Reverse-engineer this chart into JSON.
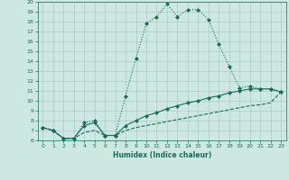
{
  "xlabel": "Humidex (Indice chaleur)",
  "bg_color": "#cce8e0",
  "grid_color": "#aacccc",
  "line_color": "#1a6b5a",
  "xlim": [
    -0.5,
    23.5
  ],
  "ylim": [
    6,
    20
  ],
  "xticks": [
    0,
    1,
    2,
    3,
    4,
    5,
    6,
    7,
    8,
    9,
    10,
    11,
    12,
    13,
    14,
    15,
    16,
    17,
    18,
    19,
    20,
    21,
    22,
    23
  ],
  "yticks": [
    6,
    7,
    8,
    9,
    10,
    11,
    12,
    13,
    14,
    15,
    16,
    17,
    18,
    19,
    20
  ],
  "series1_x": [
    0,
    1,
    2,
    3,
    4,
    5,
    6,
    7,
    8,
    9,
    10,
    11,
    12,
    13,
    14,
    15,
    16,
    17,
    18,
    19,
    20,
    21,
    22,
    23
  ],
  "series1_y": [
    7.3,
    7.0,
    6.2,
    6.2,
    7.8,
    8.0,
    6.5,
    6.5,
    10.5,
    14.3,
    17.8,
    18.5,
    19.8,
    18.5,
    19.2,
    19.2,
    18.2,
    15.7,
    13.5,
    11.3,
    11.5,
    11.2,
    11.2,
    10.9
  ],
  "series2_x": [
    0,
    1,
    2,
    3,
    4,
    5,
    6,
    7,
    8,
    9,
    10,
    11,
    12,
    13,
    14,
    15,
    16,
    17,
    18,
    19,
    20,
    21,
    22,
    23
  ],
  "series2_y": [
    7.3,
    7.0,
    6.2,
    6.2,
    7.5,
    7.8,
    6.5,
    6.5,
    7.5,
    8.0,
    8.5,
    8.8,
    9.2,
    9.5,
    9.8,
    10.0,
    10.3,
    10.5,
    10.8,
    11.0,
    11.2,
    11.2,
    11.2,
    10.9
  ],
  "series3_x": [
    0,
    1,
    2,
    3,
    4,
    5,
    6,
    7,
    8,
    9,
    10,
    11,
    12,
    13,
    14,
    15,
    16,
    17,
    18,
    19,
    20,
    21,
    22,
    23
  ],
  "series3_y": [
    7.3,
    7.0,
    6.2,
    6.2,
    6.8,
    7.0,
    6.5,
    6.5,
    7.0,
    7.3,
    7.5,
    7.7,
    7.9,
    8.1,
    8.3,
    8.5,
    8.7,
    8.9,
    9.1,
    9.3,
    9.5,
    9.6,
    9.8,
    10.9
  ],
  "markersize": 2.5,
  "linewidth": 0.8
}
